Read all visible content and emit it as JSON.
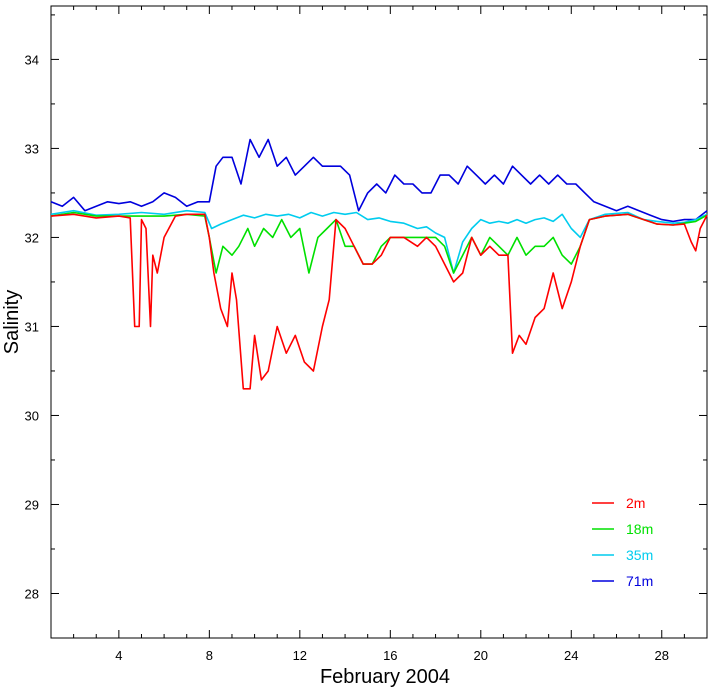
{
  "chart_data": {
    "type": "line",
    "title": "",
    "xlabel": "February 2004",
    "ylabel": "Salinity",
    "xlim": [
      1,
      30
    ],
    "ylim": [
      27.5,
      34.6
    ],
    "x_ticks": [
      4,
      8,
      12,
      16,
      20,
      24,
      28
    ],
    "y_ticks": [
      28,
      29,
      30,
      31,
      32,
      33,
      34
    ],
    "grid": false,
    "legend_position": "bottom-right",
    "series": [
      {
        "name": "2m",
        "color": "#ff0000",
        "points": [
          [
            1,
            32.24
          ],
          [
            2,
            32.26
          ],
          [
            3,
            32.22
          ],
          [
            4,
            32.24
          ],
          [
            4.5,
            32.22
          ],
          [
            4.7,
            31.0
          ],
          [
            4.9,
            31.0
          ],
          [
            5.0,
            32.2
          ],
          [
            5.2,
            32.1
          ],
          [
            5.4,
            31.0
          ],
          [
            5.5,
            31.8
          ],
          [
            5.7,
            31.6
          ],
          [
            6.0,
            32.0
          ],
          [
            6.5,
            32.24
          ],
          [
            7,
            32.26
          ],
          [
            7.8,
            32.26
          ],
          [
            8.0,
            32.0
          ],
          [
            8.2,
            31.6
          ],
          [
            8.5,
            31.2
          ],
          [
            8.8,
            31.0
          ],
          [
            9.0,
            31.6
          ],
          [
            9.2,
            31.3
          ],
          [
            9.5,
            30.3
          ],
          [
            9.8,
            30.3
          ],
          [
            10.0,
            30.9
          ],
          [
            10.3,
            30.4
          ],
          [
            10.6,
            30.5
          ],
          [
            11.0,
            31.0
          ],
          [
            11.4,
            30.7
          ],
          [
            11.8,
            30.9
          ],
          [
            12.2,
            30.6
          ],
          [
            12.6,
            30.5
          ],
          [
            13.0,
            31.0
          ],
          [
            13.3,
            31.3
          ],
          [
            13.6,
            32.2
          ],
          [
            14.0,
            32.1
          ],
          [
            14.4,
            31.9
          ],
          [
            14.8,
            31.7
          ],
          [
            15.2,
            31.7
          ],
          [
            15.6,
            31.8
          ],
          [
            16.0,
            32.0
          ],
          [
            16.6,
            32.0
          ],
          [
            17.2,
            31.9
          ],
          [
            17.6,
            32.0
          ],
          [
            18.0,
            31.9
          ],
          [
            18.4,
            31.7
          ],
          [
            18.8,
            31.5
          ],
          [
            19.2,
            31.6
          ],
          [
            19.6,
            32.0
          ],
          [
            20.0,
            31.8
          ],
          [
            20.4,
            31.9
          ],
          [
            20.8,
            31.8
          ],
          [
            21.2,
            31.8
          ],
          [
            21.4,
            30.7
          ],
          [
            21.7,
            30.9
          ],
          [
            22.0,
            30.8
          ],
          [
            22.4,
            31.1
          ],
          [
            22.8,
            31.2
          ],
          [
            23.2,
            31.6
          ],
          [
            23.6,
            31.2
          ],
          [
            24.0,
            31.5
          ],
          [
            24.4,
            31.9
          ],
          [
            24.8,
            32.2
          ],
          [
            25.5,
            32.24
          ],
          [
            26.5,
            32.26
          ],
          [
            27.2,
            32.2
          ],
          [
            27.8,
            32.15
          ],
          [
            28.5,
            32.14
          ],
          [
            29.0,
            32.15
          ],
          [
            29.3,
            31.95
          ],
          [
            29.5,
            31.85
          ],
          [
            29.7,
            32.1
          ],
          [
            30.0,
            32.25
          ]
        ]
      },
      {
        "name": "18m",
        "color": "#00e000",
        "points": [
          [
            1,
            32.24
          ],
          [
            2,
            32.28
          ],
          [
            3,
            32.24
          ],
          [
            4,
            32.24
          ],
          [
            5,
            32.24
          ],
          [
            6,
            32.24
          ],
          [
            7,
            32.26
          ],
          [
            7.8,
            32.24
          ],
          [
            8.0,
            32.0
          ],
          [
            8.3,
            31.6
          ],
          [
            8.6,
            31.9
          ],
          [
            9.0,
            31.8
          ],
          [
            9.3,
            31.9
          ],
          [
            9.7,
            32.1
          ],
          [
            10.0,
            31.9
          ],
          [
            10.4,
            32.1
          ],
          [
            10.8,
            32.0
          ],
          [
            11.2,
            32.2
          ],
          [
            11.6,
            32.0
          ],
          [
            12.0,
            32.1
          ],
          [
            12.4,
            31.6
          ],
          [
            12.8,
            32.0
          ],
          [
            13.2,
            32.1
          ],
          [
            13.6,
            32.2
          ],
          [
            14.0,
            31.9
          ],
          [
            14.4,
            31.9
          ],
          [
            14.8,
            31.7
          ],
          [
            15.2,
            31.7
          ],
          [
            15.6,
            31.9
          ],
          [
            16.0,
            32.0
          ],
          [
            16.6,
            32.0
          ],
          [
            17.2,
            32.0
          ],
          [
            17.6,
            32.0
          ],
          [
            18.0,
            32.0
          ],
          [
            18.4,
            31.9
          ],
          [
            18.8,
            31.6
          ],
          [
            19.2,
            31.8
          ],
          [
            19.6,
            32.0
          ],
          [
            20.0,
            31.8
          ],
          [
            20.4,
            32.0
          ],
          [
            20.8,
            31.9
          ],
          [
            21.2,
            31.8
          ],
          [
            21.6,
            32.0
          ],
          [
            22.0,
            31.8
          ],
          [
            22.4,
            31.9
          ],
          [
            22.8,
            31.9
          ],
          [
            23.2,
            32.0
          ],
          [
            23.6,
            31.8
          ],
          [
            24.0,
            31.7
          ],
          [
            24.4,
            31.9
          ],
          [
            24.8,
            32.2
          ],
          [
            25.5,
            32.24
          ],
          [
            26.5,
            32.26
          ],
          [
            27.2,
            32.2
          ],
          [
            27.8,
            32.15
          ],
          [
            28.5,
            32.14
          ],
          [
            29.0,
            32.16
          ],
          [
            29.5,
            32.18
          ],
          [
            30.0,
            32.25
          ]
        ]
      },
      {
        "name": "35m",
        "color": "#00ccee",
        "points": [
          [
            1,
            32.26
          ],
          [
            2,
            32.3
          ],
          [
            3,
            32.25
          ],
          [
            4,
            32.26
          ],
          [
            5,
            32.28
          ],
          [
            6,
            32.26
          ],
          [
            7,
            32.3
          ],
          [
            7.8,
            32.28
          ],
          [
            8.1,
            32.1
          ],
          [
            8.5,
            32.15
          ],
          [
            9.0,
            32.2
          ],
          [
            9.5,
            32.25
          ],
          [
            10.0,
            32.22
          ],
          [
            10.5,
            32.26
          ],
          [
            11.0,
            32.24
          ],
          [
            11.5,
            32.26
          ],
          [
            12.0,
            32.22
          ],
          [
            12.5,
            32.28
          ],
          [
            13.0,
            32.24
          ],
          [
            13.5,
            32.28
          ],
          [
            14.0,
            32.26
          ],
          [
            14.5,
            32.28
          ],
          [
            15.0,
            32.2
          ],
          [
            15.5,
            32.22
          ],
          [
            16.0,
            32.18
          ],
          [
            16.6,
            32.16
          ],
          [
            17.2,
            32.1
          ],
          [
            17.6,
            32.12
          ],
          [
            18.0,
            32.05
          ],
          [
            18.4,
            32.0
          ],
          [
            18.8,
            31.6
          ],
          [
            19.2,
            31.95
          ],
          [
            19.6,
            32.1
          ],
          [
            20.0,
            32.2
          ],
          [
            20.4,
            32.16
          ],
          [
            20.8,
            32.18
          ],
          [
            21.2,
            32.16
          ],
          [
            21.6,
            32.2
          ],
          [
            22.0,
            32.16
          ],
          [
            22.4,
            32.2
          ],
          [
            22.8,
            32.22
          ],
          [
            23.2,
            32.18
          ],
          [
            23.6,
            32.26
          ],
          [
            24.0,
            32.1
          ],
          [
            24.4,
            32.0
          ],
          [
            24.8,
            32.2
          ],
          [
            25.5,
            32.26
          ],
          [
            26.5,
            32.28
          ],
          [
            27.2,
            32.2
          ],
          [
            27.8,
            32.18
          ],
          [
            28.5,
            32.16
          ],
          [
            29.0,
            32.17
          ],
          [
            29.5,
            32.2
          ],
          [
            30.0,
            32.26
          ]
        ]
      },
      {
        "name": "71m",
        "color": "#0000dd",
        "points": [
          [
            1,
            32.4
          ],
          [
            1.5,
            32.35
          ],
          [
            2,
            32.45
          ],
          [
            2.5,
            32.3
          ],
          [
            3,
            32.35
          ],
          [
            3.5,
            32.4
          ],
          [
            4,
            32.38
          ],
          [
            4.5,
            32.4
          ],
          [
            5,
            32.35
          ],
          [
            5.5,
            32.4
          ],
          [
            6,
            32.5
          ],
          [
            6.5,
            32.45
          ],
          [
            7,
            32.35
          ],
          [
            7.5,
            32.4
          ],
          [
            8.0,
            32.4
          ],
          [
            8.3,
            32.8
          ],
          [
            8.6,
            32.9
          ],
          [
            9.0,
            32.9
          ],
          [
            9.4,
            32.6
          ],
          [
            9.8,
            33.1
          ],
          [
            10.2,
            32.9
          ],
          [
            10.6,
            33.1
          ],
          [
            11.0,
            32.8
          ],
          [
            11.4,
            32.9
          ],
          [
            11.8,
            32.7
          ],
          [
            12.2,
            32.8
          ],
          [
            12.6,
            32.9
          ],
          [
            13.0,
            32.8
          ],
          [
            13.4,
            32.8
          ],
          [
            13.8,
            32.8
          ],
          [
            14.2,
            32.7
          ],
          [
            14.6,
            32.3
          ],
          [
            15.0,
            32.5
          ],
          [
            15.4,
            32.6
          ],
          [
            15.8,
            32.5
          ],
          [
            16.2,
            32.7
          ],
          [
            16.6,
            32.6
          ],
          [
            17.0,
            32.6
          ],
          [
            17.4,
            32.5
          ],
          [
            17.8,
            32.5
          ],
          [
            18.2,
            32.7
          ],
          [
            18.6,
            32.7
          ],
          [
            19.0,
            32.6
          ],
          [
            19.4,
            32.8
          ],
          [
            19.8,
            32.7
          ],
          [
            20.2,
            32.6
          ],
          [
            20.6,
            32.7
          ],
          [
            21.0,
            32.6
          ],
          [
            21.4,
            32.8
          ],
          [
            21.8,
            32.7
          ],
          [
            22.2,
            32.6
          ],
          [
            22.6,
            32.7
          ],
          [
            23.0,
            32.6
          ],
          [
            23.4,
            32.7
          ],
          [
            23.8,
            32.6
          ],
          [
            24.2,
            32.6
          ],
          [
            24.6,
            32.5
          ],
          [
            25.0,
            32.4
          ],
          [
            25.5,
            32.35
          ],
          [
            26.0,
            32.3
          ],
          [
            26.5,
            32.35
          ],
          [
            27.0,
            32.3
          ],
          [
            27.5,
            32.25
          ],
          [
            28.0,
            32.2
          ],
          [
            28.5,
            32.18
          ],
          [
            29.0,
            32.2
          ],
          [
            29.5,
            32.2
          ],
          [
            30.0,
            32.3
          ]
        ]
      }
    ]
  }
}
